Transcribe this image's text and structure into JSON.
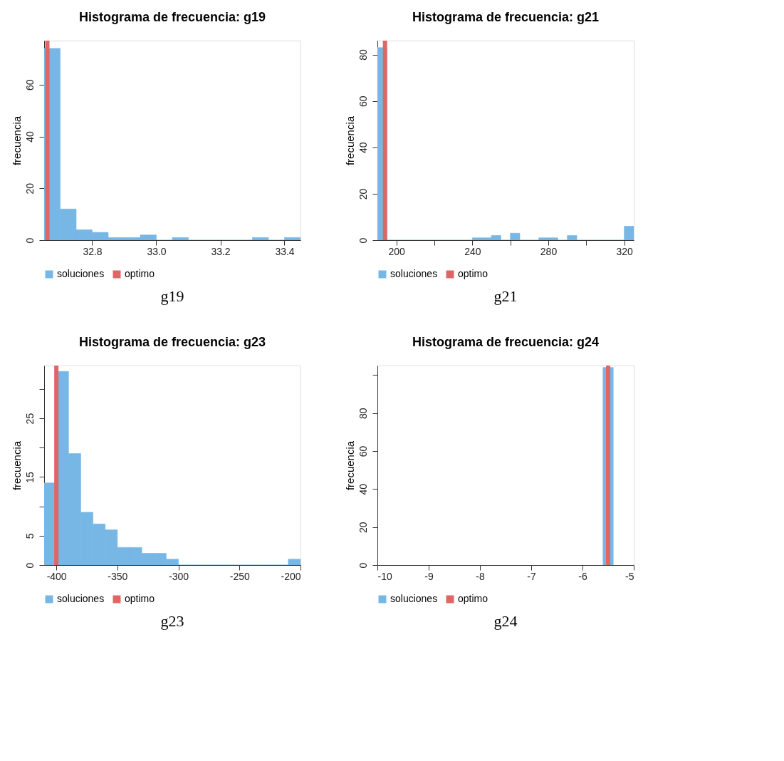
{
  "chart_data": [
    {
      "type": "histogram",
      "title": "Histograma de frecuencia: g19",
      "ylabel": "frecuencia",
      "bins": [
        32.65,
        32.7,
        32.75,
        32.8,
        32.85,
        32.9,
        32.95,
        33.0,
        33.05,
        33.1,
        33.15,
        33.2,
        33.25,
        33.3,
        33.35,
        33.4,
        33.45
      ],
      "series": [
        {
          "name": "soluciones",
          "color": "#77b7e5",
          "values": [
            74,
            12,
            4,
            3,
            1,
            1,
            2,
            0,
            1,
            0,
            0,
            0,
            0,
            1,
            0,
            1
          ]
        }
      ],
      "xlim": [
        32.65,
        33.45
      ],
      "xticks": [
        32.8,
        {
          "value": 33.0,
          "label": "33.0"
        },
        33.2,
        33.4
      ],
      "ylim": [
        0,
        77
      ],
      "yticks": [
        0,
        20,
        40,
        60
      ],
      "ref_lines": [
        {
          "axis": "x",
          "value": 32.66,
          "label": "optimo",
          "color": "#e06666"
        }
      ],
      "legend": "bottom",
      "annotations": [
        "g19"
      ]
    },
    {
      "type": "histogram",
      "title": "Histograma de frecuencia: g21",
      "ylabel": "frecuencia",
      "bins": [
        190,
        195,
        200,
        205,
        210,
        215,
        220,
        225,
        230,
        235,
        240,
        245,
        250,
        255,
        260,
        265,
        270,
        275,
        280,
        285,
        290,
        295,
        300,
        305,
        310,
        315,
        320,
        325
      ],
      "series": [
        {
          "name": "soluciones",
          "color": "#77b7e5",
          "values": [
            83,
            0,
            0,
            0,
            0,
            0,
            0,
            0,
            0,
            0,
            1,
            1,
            2,
            0,
            3,
            0,
            0,
            1,
            1,
            0,
            2,
            0,
            0,
            0,
            0,
            0,
            6
          ]
        }
      ],
      "xlim": [
        190,
        325
      ],
      "xticks": [
        200,
        {
          "value": 220,
          "label": null
        },
        240,
        {
          "value": 260,
          "label": null
        },
        280,
        {
          "value": 300,
          "label": null
        },
        320
      ],
      "ylim": [
        0,
        86
      ],
      "yticks": [
        0,
        20,
        40,
        60,
        80
      ],
      "ref_lines": [
        {
          "axis": "x",
          "value": 194,
          "label": "optimo",
          "color": "#e06666"
        }
      ],
      "legend": "bottom",
      "annotations": [
        "g21"
      ]
    },
    {
      "type": "histogram",
      "title": "Histograma de frecuencia: g23",
      "ylabel": "frecuencia",
      "bins": [
        -410,
        -400,
        -390,
        -380,
        -370,
        -360,
        -350,
        -340,
        -330,
        -320,
        -310,
        -300,
        -290,
        -280,
        -270,
        -260,
        -250,
        -240,
        -230,
        -220,
        -210,
        -200
      ],
      "series": [
        {
          "name": "soluciones",
          "color": "#77b7e5",
          "values": [
            14,
            33,
            19,
            9,
            7,
            6,
            3,
            3,
            2,
            2,
            1,
            0,
            0,
            0,
            0,
            0,
            0,
            0,
            0,
            0,
            1
          ]
        }
      ],
      "xlim": [
        -410,
        -200
      ],
      "xticks": [
        -400,
        -350,
        -300,
        -250,
        -200
      ],
      "ylim": [
        0,
        34
      ],
      "yticks": [
        0,
        5,
        {
          "value": 10,
          "label": null
        },
        15,
        {
          "value": 20,
          "label": null
        },
        25,
        {
          "value": 30,
          "label": null
        }
      ],
      "ref_lines": [
        {
          "axis": "x",
          "value": -400,
          "label": "optimo",
          "color": "#e06666"
        }
      ],
      "legend": "bottom",
      "annotations": [
        "g23"
      ]
    },
    {
      "type": "histogram",
      "title": "Histograma de frecuencia: g24",
      "ylabel": "frecuencia",
      "bins": [
        -5.6,
        -5.4
      ],
      "series": [
        {
          "name": "soluciones",
          "color": "#77b7e5",
          "values": [
            104
          ]
        }
      ],
      "xlim": [
        -10,
        -5
      ],
      "xticks": [
        -10,
        -9,
        -8,
        -7,
        -6,
        -5
      ],
      "ylim": [
        0,
        105
      ],
      "yticks": [
        0,
        20,
        40,
        60,
        80,
        {
          "value": 100,
          "label": null
        }
      ],
      "ref_lines": [
        {
          "axis": "x",
          "value": -5.5,
          "label": "optimo",
          "color": "#e06666"
        }
      ],
      "legend": "bottom",
      "annotations": [
        "g24"
      ]
    }
  ]
}
